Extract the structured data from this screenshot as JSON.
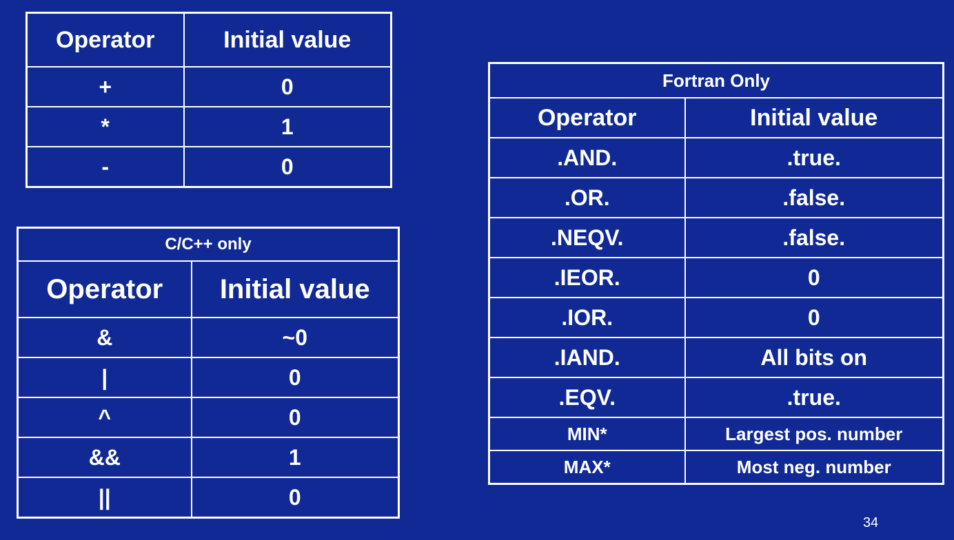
{
  "table_basic": {
    "headers": [
      "Operator",
      "Initial value"
    ],
    "rows": [
      [
        "+",
        "0"
      ],
      [
        "*",
        "1"
      ],
      [
        "-",
        "0"
      ]
    ]
  },
  "table_c": {
    "caption": "C/C++ only",
    "headers": [
      "Operator",
      "Initial value"
    ],
    "rows": [
      [
        "&",
        "~0"
      ],
      [
        "|",
        "0"
      ],
      [
        "^",
        "0"
      ],
      [
        "&&",
        "1"
      ],
      [
        "||",
        "0"
      ]
    ]
  },
  "table_fortran": {
    "caption": "Fortran Only",
    "headers": [
      "Operator",
      "Initial value"
    ],
    "rows": [
      [
        ".AND.",
        ".true."
      ],
      [
        ".OR.",
        ".false."
      ],
      [
        ".NEQV.",
        ".false."
      ],
      [
        ".IEOR.",
        "0"
      ],
      [
        ".IOR.",
        "0"
      ],
      [
        ".IAND.",
        "All bits on"
      ],
      [
        ".EQV.",
        ".true."
      ],
      [
        "MIN*",
        "Largest pos. number"
      ],
      [
        "MAX*",
        "Most neg. number"
      ]
    ]
  },
  "page_number": "34"
}
